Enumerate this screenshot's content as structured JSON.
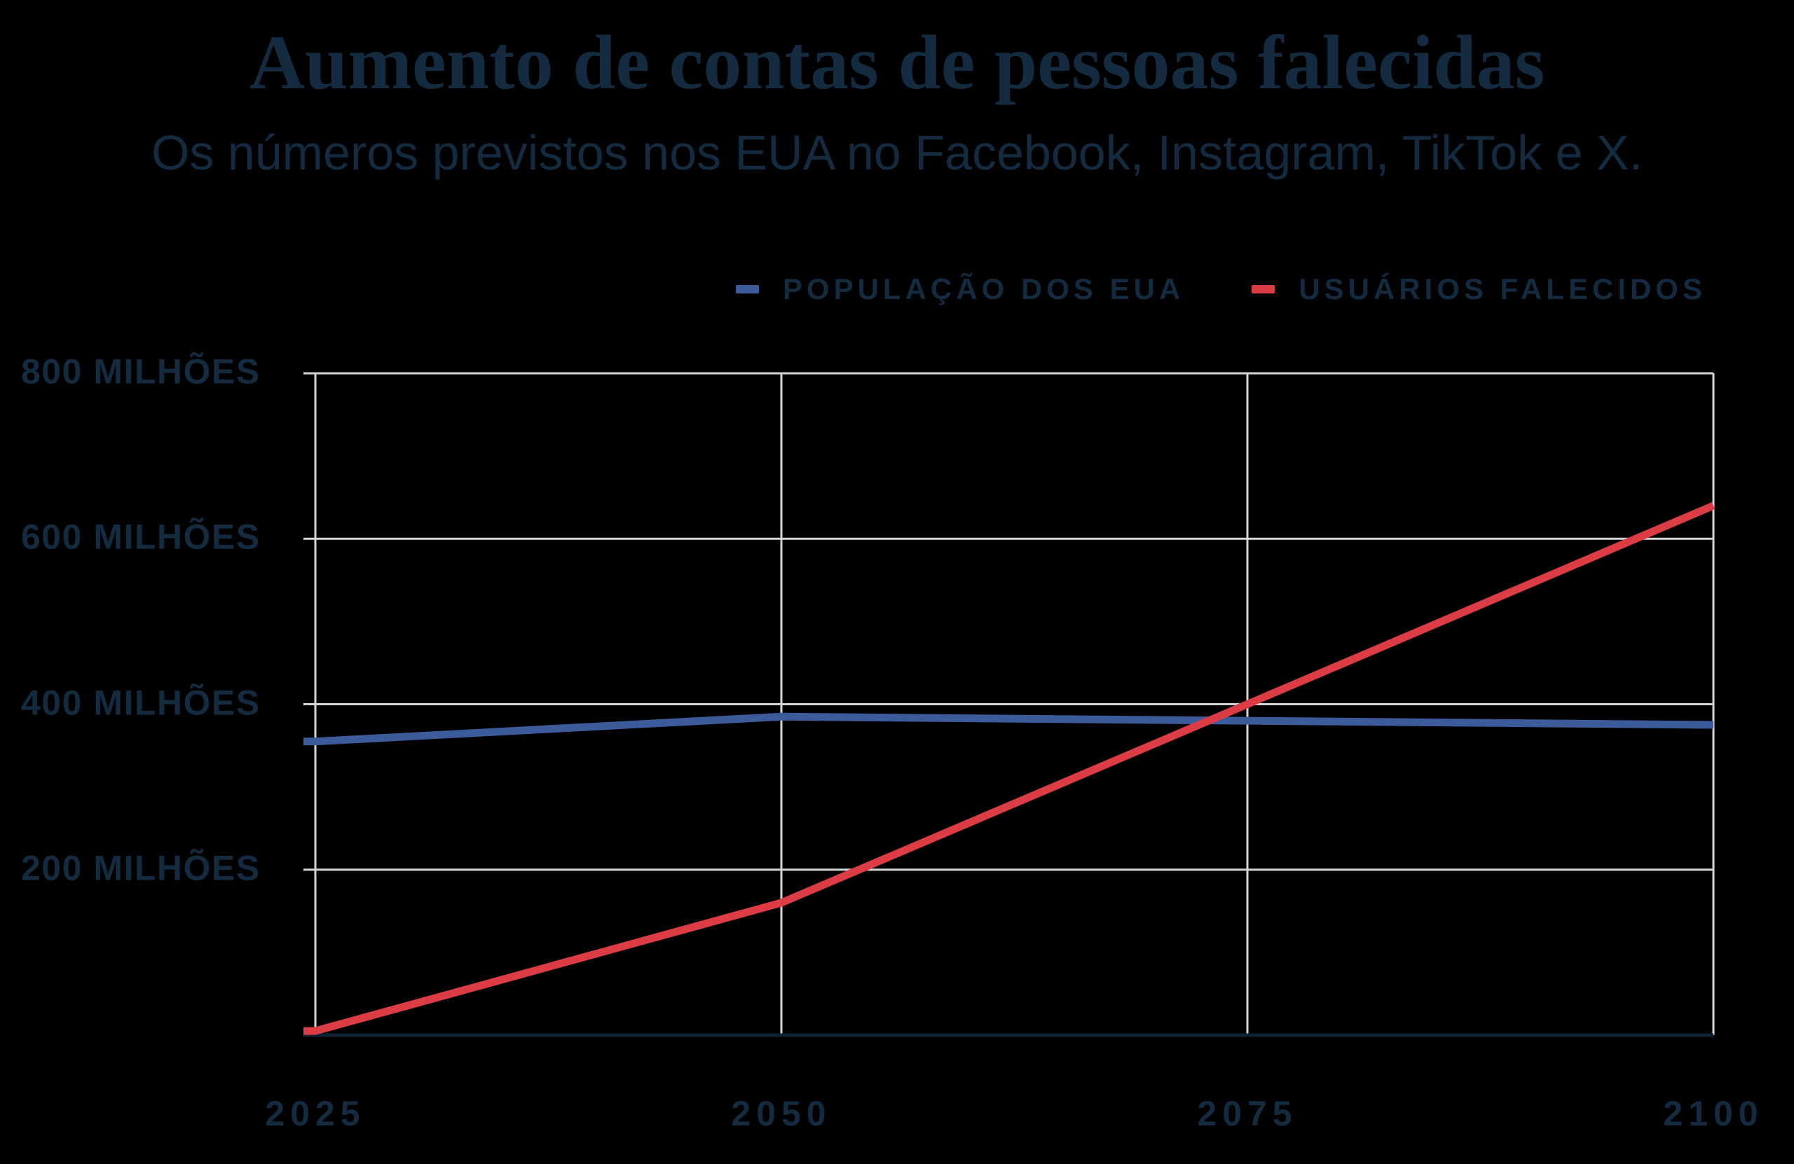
{
  "chart_data": {
    "type": "line",
    "title": "Aumento de contas de pessoas falecidas",
    "subtitle": "Os números previstos nos EUA no Facebook, Instagram, TikTok e X.",
    "x": [
      2025,
      2050,
      2075,
      2100
    ],
    "x_tick_labels": [
      "2025",
      "2050",
      "2075",
      "2100"
    ],
    "xlim": [
      2025,
      2100
    ],
    "y_ticks": [
      200,
      400,
      600,
      800
    ],
    "y_tick_labels": [
      "200 MILHÕES",
      "400 MILHÕES",
      "600 MILHÕES",
      "800 MILHÕES"
    ],
    "ylim": [
      0,
      800
    ],
    "unit": "milhões",
    "grid": true,
    "legend_position": "top-right",
    "series": [
      {
        "id": "populacao-dos-eua",
        "name": "POPULAÇÃO DOS EUA",
        "color": "#3b5b9a",
        "values": [
          355,
          385,
          380,
          375
        ]
      },
      {
        "id": "usuarios-falecidos",
        "name": "USUÁRIOS FALECIDOS",
        "color": "#dc3c43",
        "values": [
          5,
          160,
          400,
          640
        ]
      }
    ]
  },
  "colors": {
    "background": "#000000",
    "text": "#132a3f",
    "grid": "#d3d6d9",
    "axis_baseline": "#0f2336"
  }
}
